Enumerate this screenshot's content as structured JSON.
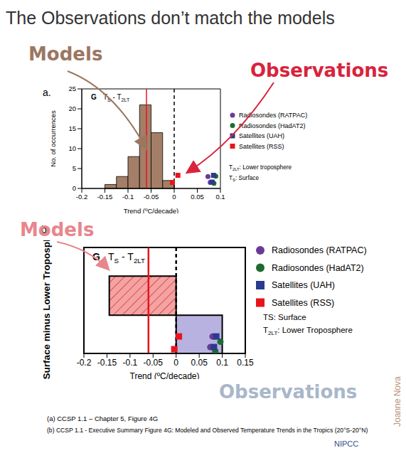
{
  "title": "The Observations don’t match the models",
  "chart_data": [
    {
      "type": "histogram",
      "panel": "a.",
      "label": "G",
      "title_parts": [
        [
          "T",
          "S"
        ],
        [
          " - ",
          ""
        ],
        [
          "T",
          "2LT"
        ]
      ],
      "x_label": "Trend (ºC/decade)",
      "y_label": "No. of occurrences",
      "xlim": [
        -0.2,
        0.1
      ],
      "xticks": [
        -0.2,
        -0.15,
        -0.1,
        -0.05,
        0,
        0.05,
        0.1
      ],
      "ylim": [
        0,
        25
      ],
      "yticks": [
        0,
        5,
        10,
        15,
        20,
        25
      ],
      "bins": [
        -0.15,
        -0.125,
        -0.1,
        -0.075,
        -0.05,
        -0.025,
        0
      ],
      "counts": [
        1,
        3,
        8,
        21,
        14,
        2
      ],
      "color": "#a57e67",
      "reference_lines": [
        {
          "x": -0.06,
          "color": "#e8141c",
          "line_style": "solid"
        },
        {
          "x": 0,
          "color": "#000000",
          "line_style": "dashed"
        }
      ],
      "series": [
        {
          "name": "Radiosondes (RATPAC)",
          "type": "scatter",
          "marker": "circle",
          "color": "#6b3a96",
          "x": [
            0.073,
            0.078
          ],
          "y": [
            3.0,
            1.5
          ]
        },
        {
          "name": "Radiosondes (HadAT2)",
          "type": "scatter",
          "marker": "circle",
          "color": "#1e6b30",
          "x": [
            0.09,
            0.086
          ],
          "y": [
            3.1,
            1.3
          ]
        },
        {
          "name": "Satellites (UAH)",
          "type": "scatter",
          "marker": "square",
          "color": "#2a3a8c",
          "x": [
            0.085,
            0.082
          ],
          "y": [
            3.3,
            1.6
          ]
        },
        {
          "name": "Satellites (RSS)",
          "type": "scatter",
          "marker": "square",
          "color": "#e8141c",
          "x": [
            0.008,
            -0.004
          ],
          "y": [
            3.3,
            1.5
          ]
        }
      ],
      "notes": [
        [
          [
            "T",
            "2LT"
          ],
          [
            ": Lower troposphere",
            ""
          ]
        ],
        [
          [
            "T",
            "S"
          ],
          [
            ": Surface",
            ""
          ]
        ]
      ]
    },
    {
      "type": "range_bar",
      "panel": "b.",
      "label": "G",
      "title_parts": [
        [
          "T",
          "S"
        ],
        [
          " - ",
          ""
        ],
        [
          "T",
          "2LT"
        ]
      ],
      "x_label": "Trend (ºC/decade)",
      "y_label": "Surface minus Lower Troposphere",
      "xlim": [
        -0.2,
        0.15
      ],
      "xticks": [
        -0.2,
        -0.15,
        -0.1,
        -0.05,
        0,
        0.05,
        0.1,
        0.15
      ],
      "ylim": [
        0,
        1
      ],
      "tick_labels": "x",
      "boxes": [
        {
          "x": [
            -0.145,
            0
          ],
          "y": [
            0.36,
            0.73
          ],
          "color": "#f4a3a3"
        },
        {
          "x": [
            0,
            0.1
          ],
          "y": [
            0,
            0.36
          ],
          "color": "#b8b2e0"
        }
      ],
      "reference_lines": [
        {
          "x": -0.06,
          "color": "#e8141c",
          "line_style": "solid"
        },
        {
          "x": 0,
          "color": "#000000",
          "line_style": "dashed"
        }
      ],
      "series": [
        {
          "name": "Radiosondes (RATPAC)",
          "type": "scatter",
          "marker": "circle",
          "color": "#6b3a96",
          "x": [
            0.079,
            0.074
          ],
          "y": [
            0.16,
            0.06
          ]
        },
        {
          "name": "Radiosondes (HadAT2)",
          "type": "scatter",
          "marker": "circle",
          "color": "#1e6b30",
          "x": [
            0.096,
            0.085
          ],
          "y": [
            0.11,
            0.02
          ]
        },
        {
          "name": "Satellites (UAH)",
          "type": "scatter",
          "marker": "square",
          "color": "#2a3a8c",
          "x": [
            0.087,
            0.082
          ],
          "y": [
            0.16,
            0.06
          ]
        },
        {
          "name": "Satellites (RSS)",
          "type": "scatter",
          "marker": "square",
          "color": "#e8141c",
          "x": [
            0.006,
            -0.004
          ],
          "y": [
            0.16,
            0.04
          ]
        }
      ],
      "notes": [
        [
          [
            "TS:  Surface",
            ""
          ]
        ],
        [
          [
            "T",
            "2LT"
          ],
          [
            ":  Lower Troposphere",
            ""
          ]
        ]
      ]
    }
  ],
  "annotations": [
    {
      "text": "Models",
      "color": "#9b7761"
    },
    {
      "text": "Observations",
      "color": "#d8243c"
    },
    {
      "text": "Models",
      "color": "#e8868c"
    },
    {
      "text": "Observations",
      "color": "#a9b7c9"
    }
  ],
  "footer": [
    "(a) CCSP 1.1 – Chapter 5, Figure 4G",
    "(b) CCSP 1.1 - Executive Summary Figure 4G: Modeled and Observed Temperature Trends in the Tropics (20°S-20°N)"
  ],
  "credit": "Joanne Nova",
  "source": "NIPCC"
}
